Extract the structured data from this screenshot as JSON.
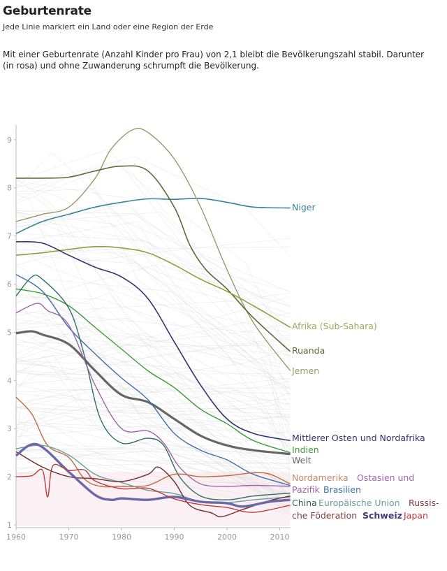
{
  "header": {
    "title": "Geburtenrate",
    "subtitle": "Jede Linie markiert ein Land oder eine Region der Erde",
    "description": "Mit einer Geburtenrate (Anzahl Kinder pro Frau) von 2,1 bleibt die Bevölkerungszahl stabil. Darunter (in rosa) und ohne Zuwanderung schrumpft die Bevölkerung."
  },
  "chart_data": {
    "type": "line",
    "title": "Geburtenrate",
    "xlabel": "",
    "ylabel": "",
    "xlim": [
      1960,
      2012
    ],
    "ylim": [
      1,
      9.3
    ],
    "x_ticks": [
      1960,
      1970,
      1980,
      1990,
      2000,
      2010
    ],
    "y_ticks": [
      1,
      2,
      3,
      4,
      5,
      6,
      7,
      8,
      9
    ],
    "replacement_level": 2.1,
    "replacement_band_color": "#fbf1f5",
    "background_lines_color": "#d8d8d8",
    "grid": false,
    "legend": "inline-right",
    "series": [
      {
        "name": "Niger",
        "label": "Niger",
        "color": "#3a8296",
        "width": 1.6,
        "points": [
          [
            1960,
            7.05
          ],
          [
            1965,
            7.3
          ],
          [
            1970,
            7.45
          ],
          [
            1975,
            7.6
          ],
          [
            1980,
            7.7
          ],
          [
            1985,
            7.77
          ],
          [
            1990,
            7.76
          ],
          [
            1995,
            7.78
          ],
          [
            2000,
            7.7
          ],
          [
            2005,
            7.6
          ],
          [
            2012,
            7.58
          ]
        ]
      },
      {
        "name": "Jemen",
        "label": "Jemen",
        "color": "#9a9a68",
        "width": 1.4,
        "points": [
          [
            1960,
            7.3
          ],
          [
            1965,
            7.45
          ],
          [
            1970,
            7.6
          ],
          [
            1975,
            8.2
          ],
          [
            1978,
            8.8
          ],
          [
            1982,
            9.2
          ],
          [
            1985,
            9.15
          ],
          [
            1990,
            8.6
          ],
          [
            1995,
            7.6
          ],
          [
            2000,
            6.3
          ],
          [
            2005,
            5.2
          ],
          [
            2012,
            4.2
          ]
        ]
      },
      {
        "name": "Ruanda",
        "label": "Ruanda",
        "color": "#636839",
        "width": 1.6,
        "points": [
          [
            1960,
            8.2
          ],
          [
            1965,
            8.2
          ],
          [
            1970,
            8.22
          ],
          [
            1975,
            8.35
          ],
          [
            1980,
            8.45
          ],
          [
            1985,
            8.35
          ],
          [
            1990,
            7.6
          ],
          [
            1993,
            6.8
          ],
          [
            1996,
            6.3
          ],
          [
            2000,
            5.9
          ],
          [
            2005,
            5.3
          ],
          [
            2012,
            4.6
          ]
        ]
      },
      {
        "name": "Afrika (Sub-Sahara)",
        "label": "Afrika (Sub-Sahara)",
        "color": "#8ba33e",
        "width": 1.6,
        "points": [
          [
            1960,
            6.6
          ],
          [
            1965,
            6.65
          ],
          [
            1970,
            6.72
          ],
          [
            1975,
            6.78
          ],
          [
            1980,
            6.75
          ],
          [
            1985,
            6.65
          ],
          [
            1990,
            6.4
          ],
          [
            1995,
            6.1
          ],
          [
            2000,
            5.85
          ],
          [
            2005,
            5.55
          ],
          [
            2012,
            5.1
          ]
        ]
      },
      {
        "name": "Mittlerer Osten und Nordafrika",
        "label": "Mittlerer Osten und Nordafrika",
        "color": "#33336e",
        "width": 1.6,
        "points": [
          [
            1960,
            6.88
          ],
          [
            1965,
            6.85
          ],
          [
            1970,
            6.6
          ],
          [
            1975,
            6.35
          ],
          [
            1980,
            6.15
          ],
          [
            1985,
            5.7
          ],
          [
            1990,
            4.8
          ],
          [
            1995,
            3.9
          ],
          [
            2000,
            3.2
          ],
          [
            2005,
            2.9
          ],
          [
            2012,
            2.75
          ]
        ]
      },
      {
        "name": "Indien",
        "label": "Indien",
        "color": "#3c9c37",
        "width": 1.4,
        "points": [
          [
            1960,
            5.9
          ],
          [
            1965,
            5.8
          ],
          [
            1970,
            5.55
          ],
          [
            1975,
            5.1
          ],
          [
            1980,
            4.65
          ],
          [
            1985,
            4.2
          ],
          [
            1990,
            3.85
          ],
          [
            1995,
            3.4
          ],
          [
            2000,
            3.1
          ],
          [
            2005,
            2.75
          ],
          [
            2012,
            2.5
          ]
        ]
      },
      {
        "name": "Welt",
        "label": "Welt",
        "color": "#666666",
        "width": 3.2,
        "points": [
          [
            1960,
            4.98
          ],
          [
            1963,
            5.02
          ],
          [
            1965,
            4.95
          ],
          [
            1970,
            4.75
          ],
          [
            1975,
            4.2
          ],
          [
            1980,
            3.7
          ],
          [
            1985,
            3.55
          ],
          [
            1990,
            3.2
          ],
          [
            1995,
            2.85
          ],
          [
            2000,
            2.65
          ],
          [
            2005,
            2.55
          ],
          [
            2012,
            2.47
          ]
        ]
      },
      {
        "name": "Brasilien",
        "label": "Brasilien",
        "color": "#3f6fa8",
        "width": 1.4,
        "points": [
          [
            1960,
            6.2
          ],
          [
            1965,
            5.85
          ],
          [
            1970,
            5.1
          ],
          [
            1975,
            4.55
          ],
          [
            1980,
            4.05
          ],
          [
            1985,
            3.6
          ],
          [
            1990,
            2.9
          ],
          [
            1995,
            2.55
          ],
          [
            2000,
            2.35
          ],
          [
            2005,
            2.05
          ],
          [
            2012,
            1.82
          ]
        ]
      },
      {
        "name": "China",
        "label": "China",
        "color": "#2e6f66",
        "width": 1.4,
        "points": [
          [
            1960,
            5.75
          ],
          [
            1963,
            6.15
          ],
          [
            1965,
            6.1
          ],
          [
            1970,
            5.5
          ],
          [
            1973,
            4.5
          ],
          [
            1976,
            3.2
          ],
          [
            1980,
            2.7
          ],
          [
            1985,
            2.8
          ],
          [
            1988,
            2.65
          ],
          [
            1991,
            2.0
          ],
          [
            1995,
            1.6
          ],
          [
            2000,
            1.52
          ],
          [
            2005,
            1.6
          ],
          [
            2012,
            1.66
          ]
        ]
      },
      {
        "name": "Ostasien und Pazifik",
        "label": "Ostasien und Pazifik",
        "color": "#a064aa",
        "width": 1.4,
        "points": [
          [
            1960,
            5.4
          ],
          [
            1964,
            5.6
          ],
          [
            1966,
            5.45
          ],
          [
            1970,
            5.15
          ],
          [
            1975,
            3.9
          ],
          [
            1980,
            3.0
          ],
          [
            1985,
            2.95
          ],
          [
            1988,
            2.7
          ],
          [
            1991,
            2.2
          ],
          [
            1995,
            1.85
          ],
          [
            2000,
            1.8
          ],
          [
            2005,
            1.82
          ],
          [
            2012,
            1.8
          ]
        ]
      },
      {
        "name": "Nordamerika",
        "label": "Nordamerika",
        "color": "#c06a3c",
        "width": 1.4,
        "points": [
          [
            1960,
            3.65
          ],
          [
            1963,
            3.3
          ],
          [
            1966,
            2.65
          ],
          [
            1970,
            2.4
          ],
          [
            1973,
            1.95
          ],
          [
            1976,
            1.8
          ],
          [
            1980,
            1.8
          ],
          [
            1985,
            1.82
          ],
          [
            1990,
            2.05
          ],
          [
            1995,
            2.0
          ],
          [
            2000,
            2.02
          ],
          [
            2007,
            2.08
          ],
          [
            2012,
            1.85
          ]
        ]
      },
      {
        "name": "Europäische Union",
        "label": "Europäische Union",
        "color": "#6a9e9a",
        "width": 1.4,
        "points": [
          [
            1960,
            2.58
          ],
          [
            1965,
            2.65
          ],
          [
            1970,
            2.45
          ],
          [
            1975,
            2.05
          ],
          [
            1980,
            1.88
          ],
          [
            1985,
            1.72
          ],
          [
            1990,
            1.65
          ],
          [
            1995,
            1.48
          ],
          [
            2000,
            1.46
          ],
          [
            2005,
            1.52
          ],
          [
            2012,
            1.58
          ]
        ]
      },
      {
        "name": "Russische Föderation",
        "label": "Russische Föderation",
        "color": "#6e2c2c",
        "width": 1.4,
        "points": [
          [
            1960,
            2.52
          ],
          [
            1965,
            2.2
          ],
          [
            1970,
            2.0
          ],
          [
            1975,
            1.96
          ],
          [
            1980,
            1.9
          ],
          [
            1985,
            2.05
          ],
          [
            1987,
            2.2
          ],
          [
            1990,
            1.9
          ],
          [
            1993,
            1.4
          ],
          [
            1997,
            1.25
          ],
          [
            1999,
            1.17
          ],
          [
            2003,
            1.32
          ],
          [
            2008,
            1.5
          ],
          [
            2012,
            1.6
          ]
        ]
      },
      {
        "name": "Schweiz",
        "label": "Schweiz",
        "color": "#6b67a8",
        "width": 3.4,
        "points": [
          [
            1960,
            2.44
          ],
          [
            1964,
            2.67
          ],
          [
            1970,
            2.1
          ],
          [
            1975,
            1.62
          ],
          [
            1978,
            1.52
          ],
          [
            1980,
            1.55
          ],
          [
            1985,
            1.52
          ],
          [
            1990,
            1.58
          ],
          [
            1995,
            1.48
          ],
          [
            2000,
            1.45
          ],
          [
            2003,
            1.38
          ],
          [
            2008,
            1.48
          ],
          [
            2012,
            1.52
          ]
        ]
      },
      {
        "name": "Japan",
        "label": "Japan",
        "color": "#c0393b",
        "width": 1.4,
        "points": [
          [
            1960,
            2.0
          ],
          [
            1963,
            2.02
          ],
          [
            1965,
            2.14
          ],
          [
            1966,
            1.58
          ],
          [
            1967,
            2.23
          ],
          [
            1970,
            2.13
          ],
          [
            1973,
            2.14
          ],
          [
            1975,
            1.91
          ],
          [
            1980,
            1.75
          ],
          [
            1985,
            1.76
          ],
          [
            1990,
            1.54
          ],
          [
            1995,
            1.42
          ],
          [
            2000,
            1.36
          ],
          [
            2005,
            1.26
          ],
          [
            2012,
            1.41
          ]
        ]
      }
    ],
    "labels": [
      {
        "text": "Niger",
        "series": "Niger",
        "color": "#3a8296"
      },
      {
        "text": "Afrika (Sub-Sahara)",
        "series": "Afrika (Sub-Sahara)",
        "color": "#9aaa5a"
      },
      {
        "text": "Ruanda",
        "series": "Ruanda",
        "color": "#636839"
      },
      {
        "text": "Jemen",
        "series": "Jemen",
        "color": "#9a9a68"
      },
      {
        "text": "Mittlerer Osten und Nordafrika",
        "series": "Mittlerer Osten und Nordafrika",
        "color": "#33336e"
      },
      {
        "text": "Indien",
        "series": "Indien",
        "color": "#3c9c37"
      },
      {
        "text": "Welt",
        "series": "Welt",
        "color": "#666666"
      },
      {
        "text": "Nordamerika",
        "series": "Nordamerika",
        "color": "#c0886a"
      },
      {
        "text": "Ostasien und",
        "series": "Ostasien und Pazifik",
        "color": "#a064aa"
      },
      {
        "text": "Pazifik",
        "series": "Ostasien und Pazifik",
        "color": "#a064aa"
      },
      {
        "text": "Brasilien",
        "series": "Brasilien",
        "color": "#3f6fa8"
      },
      {
        "text": "China",
        "series": "China",
        "color": "#2e5f58"
      },
      {
        "text": "Europäische Union",
        "series": "Europäische Union",
        "color": "#6a9e9a"
      },
      {
        "text": "Russis-",
        "series": "Russische Föderation",
        "color": "#7a3c3c"
      },
      {
        "text": "che Föderation",
        "series": "Russische Föderation",
        "color": "#7a3c3c"
      },
      {
        "text": "Schweiz",
        "series": "Schweiz",
        "color": "#3d3a80",
        "bold": true
      },
      {
        "text": "Japan",
        "series": "Japan",
        "color": "#c0393b"
      }
    ]
  }
}
